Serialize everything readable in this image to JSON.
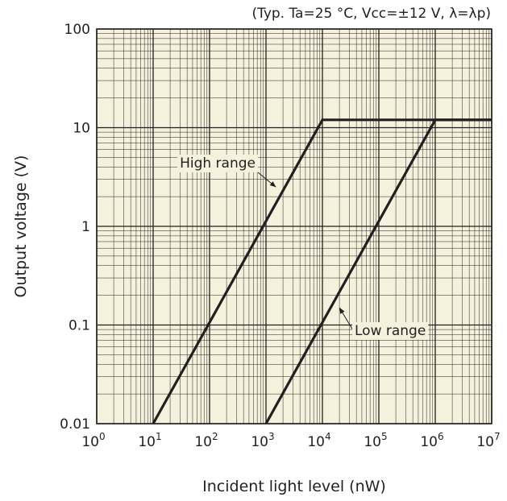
{
  "chart_data": {
    "type": "line",
    "title": "",
    "subtitle": "(Typ. Ta=25 °C, Vcc=±12 V, λ=λp)",
    "xlabel": "Incident light level (nW)",
    "ylabel": "Output voltage (V)",
    "x_scale": "log",
    "y_scale": "log",
    "xlim": [
      1,
      10000000
    ],
    "ylim": [
      0.01,
      100
    ],
    "x_ticks": [
      {
        "base": "10",
        "exp": "0",
        "value": 1
      },
      {
        "base": "10",
        "exp": "1",
        "value": 10
      },
      {
        "base": "10",
        "exp": "2",
        "value": 100
      },
      {
        "base": "10",
        "exp": "3",
        "value": 1000
      },
      {
        "base": "10",
        "exp": "4",
        "value": 10000
      },
      {
        "base": "10",
        "exp": "5",
        "value": 100000
      },
      {
        "base": "10",
        "exp": "6",
        "value": 1000000
      },
      {
        "base": "10",
        "exp": "7",
        "value": 10000000
      }
    ],
    "y_ticks": [
      {
        "label": "100",
        "value": 100
      },
      {
        "label": "10",
        "value": 10
      },
      {
        "label": "1",
        "value": 1
      },
      {
        "label": "0.1",
        "value": 0.1
      },
      {
        "label": "0.01",
        "value": 0.01
      }
    ],
    "grid": true,
    "series": [
      {
        "name": "High range",
        "x": [
          10,
          10000,
          10000000
        ],
        "y": [
          0.01,
          12,
          12
        ]
      },
      {
        "name": "Low range",
        "x": [
          1000,
          1000000,
          10000000
        ],
        "y": [
          0.01,
          12,
          12
        ]
      }
    ],
    "annotations": [
      {
        "text": "High range",
        "points_to": {
          "x": 1500,
          "y": 2.5
        }
      },
      {
        "text": "Low range",
        "points_to": {
          "x": 20000,
          "y": 0.15
        }
      }
    ],
    "colors": {
      "plot_background": "#f6f1dc",
      "line": "#231f20",
      "grid": "#231f20"
    }
  }
}
